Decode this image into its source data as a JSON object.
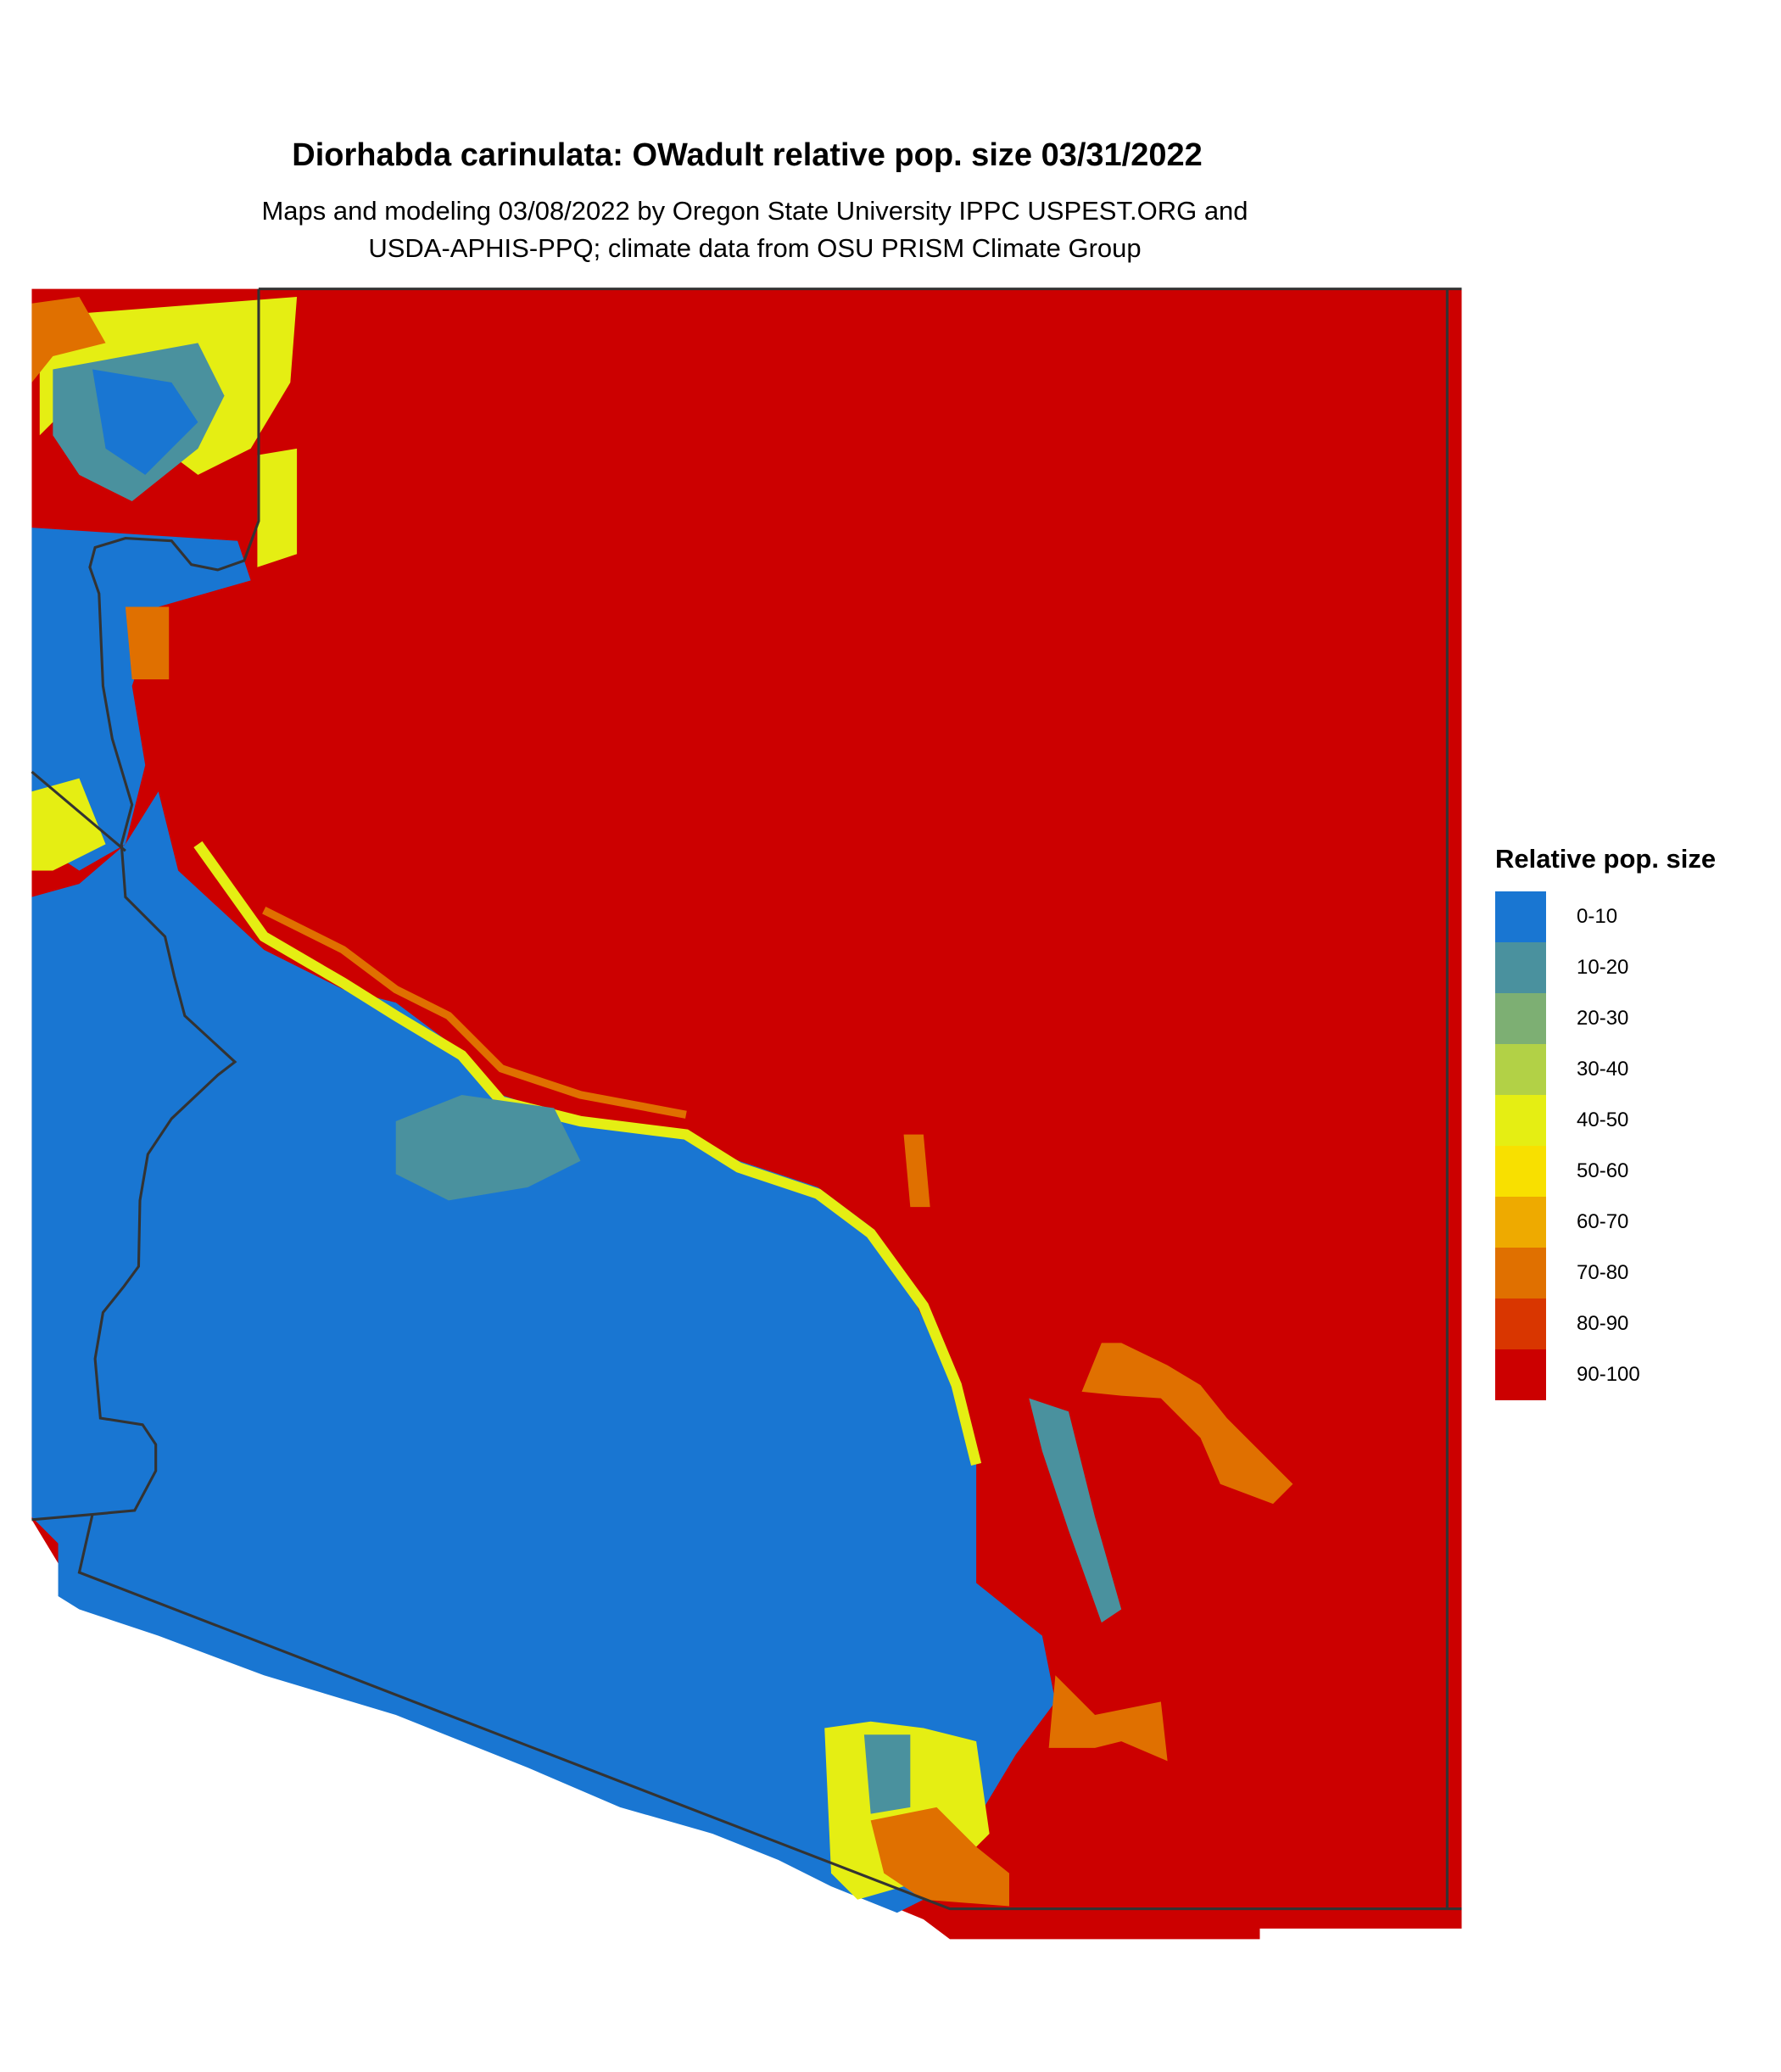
{
  "title": "Diorhabda carinulata: OWadult relative pop. size 03/31/2022",
  "subtitle_lines": [
    "Maps and modeling 03/08/2022 by Oregon State University IPPC USPEST.ORG and",
    "USDA-APHIS-PPQ; climate data from OSU PRISM Climate Group"
  ],
  "legend": {
    "title": "Relative pop. size",
    "items": [
      {
        "label": "0-10",
        "color": "#1976D2"
      },
      {
        "label": "10-20",
        "color": "#4A919E"
      },
      {
        "label": "20-30",
        "color": "#7DAF73"
      },
      {
        "label": "30-40",
        "color": "#B2D146"
      },
      {
        "label": "40-50",
        "color": "#E5EE13"
      },
      {
        "label": "50-60",
        "color": "#F8E000"
      },
      {
        "label": "60-70",
        "color": "#EEAA00"
      },
      {
        "label": "70-80",
        "color": "#E07000"
      },
      {
        "label": "80-90",
        "color": "#D93600"
      },
      {
        "label": "90-100",
        "color": "#CC0000"
      }
    ]
  },
  "map": {
    "background_class_color": "#CC0000",
    "boundary_color": "#333333"
  }
}
